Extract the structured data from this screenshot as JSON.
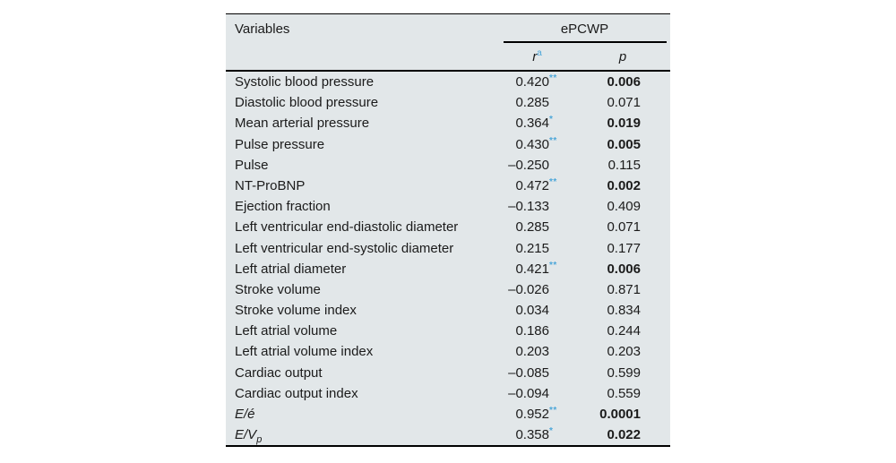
{
  "colors": {
    "table_bg": "#e2e7e9",
    "accent_blue": "#4da7d9",
    "text": "#1b1b1b",
    "border": "#000000"
  },
  "table": {
    "header": {
      "variables_label": "Variables",
      "group_label": "ePCWP",
      "r_label": "r",
      "r_sup": "a",
      "p_label": "p"
    },
    "rows": [
      {
        "variable": "Systolic blood pressure",
        "italic": false,
        "sub": "",
        "r": "0.420",
        "stars": "**",
        "p": "0.006",
        "p_bold": true
      },
      {
        "variable": "Diastolic blood pressure",
        "italic": false,
        "sub": "",
        "r": "0.285",
        "stars": "",
        "p": "0.071",
        "p_bold": false
      },
      {
        "variable": "Mean arterial pressure",
        "italic": false,
        "sub": "",
        "r": "0.364",
        "stars": "*",
        "p": "0.019",
        "p_bold": true
      },
      {
        "variable": "Pulse pressure",
        "italic": false,
        "sub": "",
        "r": "0.430",
        "stars": "**",
        "p": "0.005",
        "p_bold": true
      },
      {
        "variable": "Pulse",
        "italic": false,
        "sub": "",
        "r": "–0.250",
        "stars": "",
        "p": "0.115",
        "p_bold": false
      },
      {
        "variable": "NT-ProBNP",
        "italic": false,
        "sub": "",
        "r": "0.472",
        "stars": "**",
        "p": "0.002",
        "p_bold": true
      },
      {
        "variable": "Ejection fraction",
        "italic": false,
        "sub": "",
        "r": "–0.133",
        "stars": "",
        "p": "0.409",
        "p_bold": false
      },
      {
        "variable": "Left ventricular end-diastolic diameter",
        "italic": false,
        "sub": "",
        "r": "0.285",
        "stars": "",
        "p": "0.071",
        "p_bold": false
      },
      {
        "variable": "Left ventricular end-systolic diameter",
        "italic": false,
        "sub": "",
        "r": "0.215",
        "stars": "",
        "p": "0.177",
        "p_bold": false
      },
      {
        "variable": "Left atrial diameter",
        "italic": false,
        "sub": "",
        "r": "0.421",
        "stars": "**",
        "p": "0.006",
        "p_bold": true
      },
      {
        "variable": "Stroke volume",
        "italic": false,
        "sub": "",
        "r": "–0.026",
        "stars": "",
        "p": "0.871",
        "p_bold": false
      },
      {
        "variable": "Stroke volume index",
        "italic": false,
        "sub": "",
        "r": "0.034",
        "stars": "",
        "p": "0.834",
        "p_bold": false
      },
      {
        "variable": "Left atrial volume",
        "italic": false,
        "sub": "",
        "r": "0.186",
        "stars": "",
        "p": "0.244",
        "p_bold": false
      },
      {
        "variable": "Left atrial volume index",
        "italic": false,
        "sub": "",
        "r": "0.203",
        "stars": "",
        "p": "0.203",
        "p_bold": false
      },
      {
        "variable": "Cardiac output",
        "italic": false,
        "sub": "",
        "r": "–0.085",
        "stars": "",
        "p": "0.599",
        "p_bold": false
      },
      {
        "variable": "Cardiac output index",
        "italic": false,
        "sub": "",
        "r": "–0.094",
        "stars": "",
        "p": "0.559",
        "p_bold": false
      },
      {
        "variable": "E/é",
        "italic": true,
        "sub": "",
        "r": "0.952",
        "stars": "**",
        "p": "0.0001",
        "p_bold": true
      },
      {
        "variable": "E/V",
        "italic": true,
        "sub": "p",
        "r": "0.358",
        "stars": "*",
        "p": "0.022",
        "p_bold": true
      }
    ]
  }
}
